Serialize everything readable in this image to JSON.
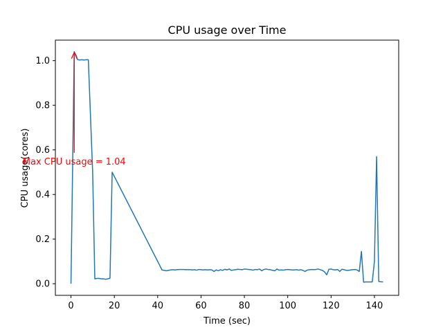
{
  "chart_data": {
    "type": "line",
    "title": "CPU usage over Time",
    "xlabel": "Time (sec)",
    "ylabel": "CPU usage(cores)",
    "xlim": [
      -7.2,
      151.2
    ],
    "ylim": [
      -0.052,
      1.092
    ],
    "xticks": [
      0,
      20,
      40,
      60,
      80,
      100,
      120,
      140
    ],
    "xtick_labels": [
      "0",
      "20",
      "40",
      "60",
      "80",
      "100",
      "120",
      "140"
    ],
    "yticks": [
      0.0,
      0.2,
      0.4,
      0.6,
      0.8,
      1.0
    ],
    "ytick_labels": [
      "0.0",
      "0.2",
      "0.4",
      "0.6",
      "0.8",
      "1.0"
    ],
    "grid": false,
    "legend": "none",
    "series": [
      {
        "color": "#1f77b4",
        "x": [
          0,
          1.5,
          2.5,
          3,
          4,
          5,
          6,
          7,
          8,
          10,
          11,
          12,
          13,
          14,
          15,
          16,
          17,
          18,
          19,
          42,
          43,
          44,
          45,
          46,
          47,
          48,
          49,
          50,
          51,
          52,
          53,
          54,
          55,
          56,
          57,
          58,
          59,
          60,
          61,
          62,
          63,
          64,
          65,
          66,
          67,
          68,
          69,
          70,
          71,
          72,
          73,
          74,
          75,
          76,
          77,
          78,
          79,
          80,
          81,
          82,
          83,
          84,
          85,
          86,
          87,
          88,
          89,
          90,
          91,
          92,
          93,
          94,
          95,
          96,
          97,
          98,
          99,
          100,
          101,
          102,
          103,
          104,
          105,
          106,
          107,
          108,
          109,
          110,
          111,
          112,
          113,
          114,
          115,
          116,
          117,
          118,
          119,
          120,
          121,
          122,
          123,
          124,
          125,
          126,
          127,
          128,
          129,
          130,
          131,
          132,
          133,
          134,
          135,
          136,
          137,
          138,
          139,
          140,
          141,
          142,
          143,
          144
        ],
        "y": [
          0.0,
          1.04,
          1.02,
          1.005,
          1.003,
          1.004,
          1.003,
          1.004,
          1.004,
          0.5,
          0.022,
          0.024,
          0.024,
          0.022,
          0.022,
          0.02,
          0.022,
          0.025,
          0.5,
          0.062,
          0.06,
          0.058,
          0.06,
          0.062,
          0.063,
          0.062,
          0.063,
          0.064,
          0.064,
          0.064,
          0.063,
          0.063,
          0.063,
          0.062,
          0.063,
          0.061,
          0.064,
          0.063,
          0.062,
          0.063,
          0.062,
          0.063,
          0.062,
          0.055,
          0.062,
          0.058,
          0.063,
          0.06,
          0.065,
          0.062,
          0.066,
          0.06,
          0.062,
          0.063,
          0.065,
          0.064,
          0.063,
          0.066,
          0.065,
          0.064,
          0.063,
          0.061,
          0.064,
          0.063,
          0.066,
          0.058,
          0.064,
          0.066,
          0.064,
          0.063,
          0.06,
          0.058,
          0.066,
          0.061,
          0.062,
          0.061,
          0.063,
          0.064,
          0.063,
          0.062,
          0.062,
          0.063,
          0.061,
          0.063,
          0.06,
          0.055,
          0.061,
          0.063,
          0.064,
          0.063,
          0.064,
          0.066,
          0.063,
          0.06,
          0.053,
          0.04,
          0.065,
          0.066,
          0.063,
          0.062,
          0.064,
          0.055,
          0.065,
          0.063,
          0.06,
          0.06,
          0.062,
          0.063,
          0.064,
          0.062,
          0.055,
          0.145,
          0.007,
          0.008,
          0.008,
          0.008,
          0.008,
          0.1,
          0.57,
          0.01,
          0.009,
          0.008
        ]
      }
    ],
    "annotation": {
      "text": "Max CPU usage = 1.04",
      "color": "#ff0000",
      "text_x": 1.5,
      "text_y": 0.55,
      "point_x": 1.5,
      "point_y": 1.04
    }
  }
}
